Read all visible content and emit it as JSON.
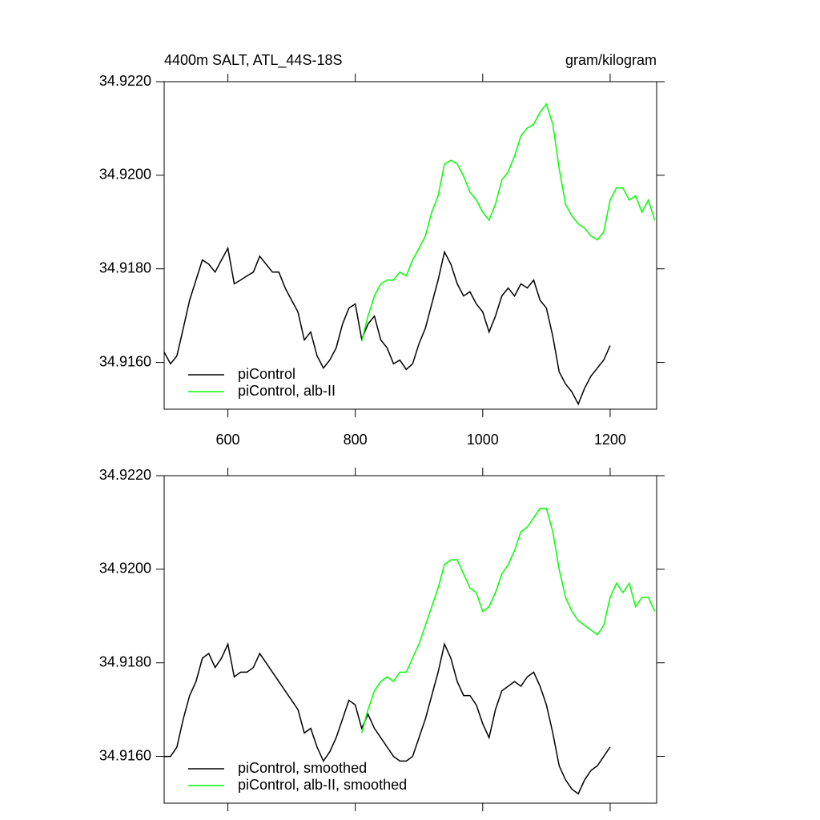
{
  "chart_data": [
    {
      "type": "line",
      "title": "4400m SALT, ATL_44S-18S",
      "units": "gram/kilogram",
      "x": [
        500,
        510,
        520,
        530,
        540,
        550,
        560,
        570,
        580,
        590,
        600,
        610,
        620,
        630,
        640,
        650,
        660,
        670,
        680,
        690,
        700,
        710,
        720,
        730,
        740,
        750,
        760,
        770,
        780,
        790,
        800,
        810,
        820,
        830,
        840,
        850,
        860,
        870,
        880,
        890,
        900,
        910,
        920,
        930,
        940,
        950,
        960,
        970,
        980,
        990,
        1000,
        1010,
        1020,
        1030,
        1040,
        1050,
        1060,
        1070,
        1080,
        1090,
        1100,
        1110,
        1120,
        1130,
        1140,
        1150,
        1160,
        1170,
        1180,
        1190,
        1200,
        1210,
        1220,
        1230,
        1240,
        1250,
        1260,
        1270
      ],
      "series": [
        {
          "name": "piControl",
          "color": "#000000",
          "values": [
            34.91622,
            34.91597,
            34.91614,
            34.91673,
            34.91733,
            34.91776,
            34.91819,
            34.9181,
            34.91793,
            34.91819,
            34.91844,
            34.91768,
            34.91776,
            34.91785,
            34.91793,
            34.91827,
            34.9181,
            34.91793,
            34.91793,
            34.91759,
            34.91733,
            34.91708,
            34.91648,
            34.91665,
            34.91614,
            34.91588,
            34.91605,
            34.91631,
            34.91682,
            34.91716,
            34.91725,
            34.9165,
            34.91682,
            34.91699,
            34.91648,
            34.91631,
            34.91597,
            34.91605,
            34.91585,
            34.91597,
            34.9164,
            34.91673,
            34.91725,
            34.91776,
            34.91836,
            34.9181,
            34.91768,
            34.91742,
            34.91751,
            34.91725,
            34.91708,
            34.91665,
            34.91699,
            34.91742,
            34.91759,
            34.91742,
            34.91768,
            34.91759,
            34.91776,
            34.91733,
            34.91716,
            34.91656,
            34.9158,
            34.91554,
            34.91537,
            34.91511,
            34.91545,
            34.91571,
            34.91588,
            34.91605,
            34.91636,
            null,
            null,
            null,
            null,
            null,
            null,
            null
          ]
        },
        {
          "name": "piControl, alb-II",
          "color": "#00ff00",
          "values": [
            null,
            null,
            null,
            null,
            null,
            null,
            null,
            null,
            null,
            null,
            null,
            null,
            null,
            null,
            null,
            null,
            null,
            null,
            null,
            null,
            null,
            null,
            null,
            null,
            null,
            null,
            null,
            null,
            null,
            null,
            null,
            34.91645,
            34.91699,
            34.91742,
            34.91768,
            34.91776,
            34.91776,
            34.91793,
            34.91785,
            34.91819,
            34.91844,
            34.9187,
            34.91921,
            34.91956,
            34.92024,
            34.92032,
            34.92024,
            34.91998,
            34.91964,
            34.91947,
            34.91921,
            34.91904,
            34.91938,
            34.9199,
            34.92007,
            34.92041,
            34.92084,
            34.92101,
            34.92109,
            34.92135,
            34.92152,
            34.92109,
            34.92015,
            34.91938,
            34.91913,
            34.91896,
            34.91887,
            34.9187,
            34.91862,
            34.91879,
            34.91947,
            34.91973,
            34.91973,
            34.91947,
            34.91956,
            34.91921,
            34.91947,
            34.91904
          ]
        }
      ],
      "xlim": [
        500,
        1273
      ],
      "xticks": [
        600,
        800,
        1000,
        1200
      ],
      "show_xtick_labels": true,
      "ylim": [
        34.915,
        34.922
      ],
      "yticks": [
        {
          "value": 34.916,
          "label": "34.9160"
        },
        {
          "value": 34.918,
          "label": "34.9180"
        },
        {
          "value": 34.92,
          "label": "34.9200"
        },
        {
          "value": 34.922,
          "label": "34.9220"
        }
      ],
      "legend": "bottom-left"
    },
    {
      "type": "line",
      "x": [
        500,
        510,
        520,
        530,
        540,
        550,
        560,
        570,
        580,
        590,
        600,
        610,
        620,
        630,
        640,
        650,
        660,
        670,
        680,
        690,
        700,
        710,
        720,
        730,
        740,
        750,
        760,
        770,
        780,
        790,
        800,
        810,
        820,
        830,
        840,
        850,
        860,
        870,
        880,
        890,
        900,
        910,
        920,
        930,
        940,
        950,
        960,
        970,
        980,
        990,
        1000,
        1010,
        1020,
        1030,
        1040,
        1050,
        1060,
        1070,
        1080,
        1090,
        1100,
        1110,
        1120,
        1130,
        1140,
        1150,
        1160,
        1170,
        1180,
        1190,
        1200,
        1210,
        1220,
        1230,
        1240,
        1250,
        1260,
        1270
      ],
      "series": [
        {
          "name": "piControl, smoothed",
          "color": "#000000",
          "values": [
            34.916,
            34.916,
            34.9162,
            34.9168,
            34.9173,
            34.9176,
            34.9181,
            34.9182,
            34.9179,
            34.9181,
            34.9184,
            34.9177,
            34.9178,
            34.9178,
            34.9179,
            34.9182,
            34.918,
            34.9178,
            34.9176,
            34.9174,
            34.9172,
            34.917,
            34.9165,
            34.9166,
            34.9162,
            34.9159,
            34.9161,
            34.9164,
            34.9168,
            34.9172,
            34.9171,
            34.9166,
            34.9169,
            34.9166,
            34.9164,
            34.9162,
            34.916,
            34.9159,
            34.9159,
            34.916,
            34.9164,
            34.9168,
            34.9173,
            34.9178,
            34.9184,
            34.9181,
            34.9176,
            34.9173,
            34.9173,
            34.9171,
            34.9167,
            34.9164,
            34.917,
            34.9174,
            34.9175,
            34.9176,
            34.9175,
            34.9177,
            34.9178,
            34.9175,
            34.9171,
            34.9165,
            34.9158,
            34.9155,
            34.9153,
            34.9152,
            34.9155,
            34.9157,
            34.9158,
            34.916,
            34.9162,
            null,
            null,
            null,
            null,
            null,
            null,
            null
          ]
        },
        {
          "name": "piControl, alb-II, smoothed",
          "color": "#00ff00",
          "values": [
            null,
            null,
            null,
            null,
            null,
            null,
            null,
            null,
            null,
            null,
            null,
            null,
            null,
            null,
            null,
            null,
            null,
            null,
            null,
            null,
            null,
            null,
            null,
            null,
            null,
            null,
            null,
            null,
            null,
            null,
            null,
            34.9165,
            34.917,
            34.9174,
            34.9176,
            34.9177,
            34.9176,
            34.9178,
            34.9178,
            34.9181,
            34.9184,
            34.9188,
            34.9192,
            34.9196,
            34.9201,
            34.9202,
            34.9202,
            34.9199,
            34.9196,
            34.9195,
            34.9191,
            34.9192,
            34.9195,
            34.9199,
            34.9201,
            34.9204,
            34.9208,
            34.9209,
            34.9211,
            34.9213,
            34.9213,
            34.9208,
            34.92,
            34.9194,
            34.9191,
            34.9189,
            34.9188,
            34.9187,
            34.9186,
            34.9188,
            34.9194,
            34.9197,
            34.9195,
            34.9197,
            34.9192,
            34.9194,
            34.9194,
            34.9191
          ]
        }
      ],
      "xlim": [
        500,
        1273
      ],
      "xticks": [
        600,
        800,
        1000,
        1200
      ],
      "show_xtick_labels": false,
      "ylim": [
        34.915,
        34.922
      ],
      "yticks": [
        {
          "value": 34.916,
          "label": "34.9160"
        },
        {
          "value": 34.918,
          "label": "34.9180"
        },
        {
          "value": 34.92,
          "label": "34.9200"
        },
        {
          "value": 34.922,
          "label": "34.9220"
        }
      ],
      "legend": "bottom-left"
    }
  ]
}
